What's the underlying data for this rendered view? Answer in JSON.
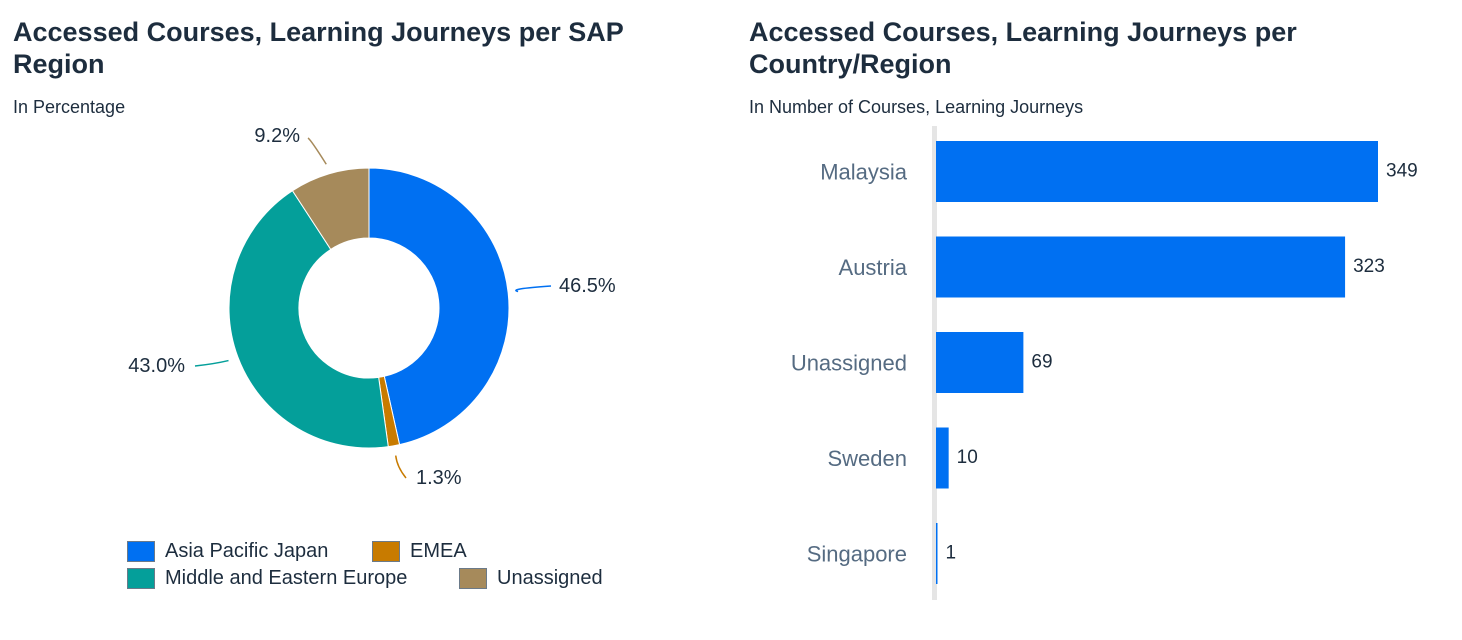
{
  "chart_data": [
    {
      "type": "pie",
      "variant": "donut",
      "title": "Accessed Courses, Learning Journeys per SAP Region",
      "subtitle": "In Percentage",
      "slices": [
        {
          "label": "Asia Pacific Japan",
          "value": 46.5,
          "value_label": "46.5%",
          "color": "#0070f2"
        },
        {
          "label": "EMEA",
          "value": 1.3,
          "value_label": "1.3%",
          "color": "#c87b00"
        },
        {
          "label": "Middle and Eastern Europe",
          "value": 43.0,
          "value_label": "43.0%",
          "color": "#049f9a"
        },
        {
          "label": "Unassigned",
          "value": 9.2,
          "value_label": "9.2%",
          "color": "#a68a5b"
        }
      ],
      "legend": [
        {
          "label": "Asia Pacific Japan",
          "color": "#0070f2"
        },
        {
          "label": "EMEA",
          "color": "#c87b00"
        },
        {
          "label": "Middle and Eastern Europe",
          "color": "#049f9a"
        },
        {
          "label": "Unassigned",
          "color": "#a68a5b"
        }
      ],
      "legend_position": "bottom"
    },
    {
      "type": "bar",
      "orientation": "horizontal",
      "title": "Accessed Courses, Learning Journeys per Country/Region",
      "subtitle": "In Number of Courses, Learning Journeys",
      "categories": [
        "Malaysia",
        "Austria",
        "Unassigned",
        "Sweden",
        "Singapore"
      ],
      "values": [
        349,
        323,
        69,
        10,
        1
      ],
      "value_labels": [
        "349",
        "323",
        "69",
        "10",
        "1"
      ],
      "color": "#0070f2",
      "xlim": [
        0,
        349
      ],
      "grid": false
    }
  ]
}
